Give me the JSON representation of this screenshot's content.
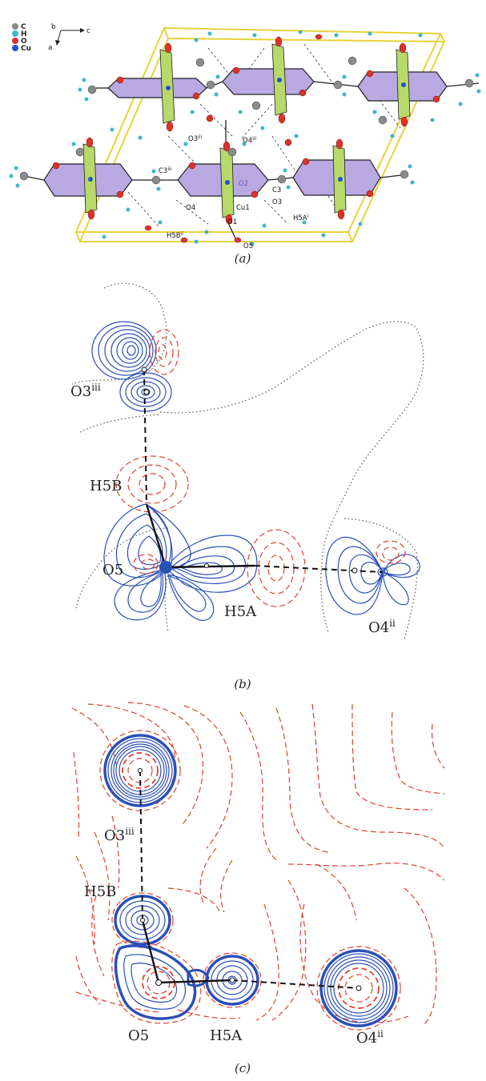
{
  "panel_a": {
    "caption": "(a)",
    "legend": {
      "items": [
        {
          "symbol": "C",
          "color": "#8a8a8a"
        },
        {
          "symbol": "H",
          "color": "#3fb7c9"
        },
        {
          "symbol": "O",
          "color": "#d8342a"
        },
        {
          "symbol": "Cu",
          "color": "#2450c8"
        }
      ]
    },
    "axes": {
      "b": "b",
      "c": "c",
      "a": "a"
    },
    "atom_labels": {
      "o3iii": "O3",
      "o3iii_sup": "iii",
      "o4iii": "O4",
      "o4iii_sup": "iii",
      "c3iii": "C3",
      "c3iii_sup": "iii",
      "o2": "O2",
      "c3": "C3",
      "o3": "O3",
      "o4": "O4",
      "cu1": "Cu1",
      "o1": "O1",
      "h5ai": "H5A",
      "h5ai_sup": "i",
      "h5bii": "H5B",
      "h5bii_sup": "ii",
      "o5": "O5"
    },
    "colors": {
      "cell": "#e8d23a",
      "plane_purple": "#b9a9e3",
      "plane_green": "#b6d96a"
    }
  },
  "panel_b": {
    "caption": "(b)",
    "labels": {
      "o3": "O3",
      "o3_sup": "iii",
      "h5b": "H5B",
      "o5": "O5",
      "h5a": "H5A",
      "o4": "O4",
      "o4_sup": "ii"
    }
  },
  "panel_c": {
    "caption": "(c)",
    "labels": {
      "o3": "O3",
      "o3_sup": "iii",
      "h5b": "H5B",
      "o5": "O5",
      "h5a": "H5A",
      "o4": "O4",
      "o4_sup": "ii"
    }
  }
}
